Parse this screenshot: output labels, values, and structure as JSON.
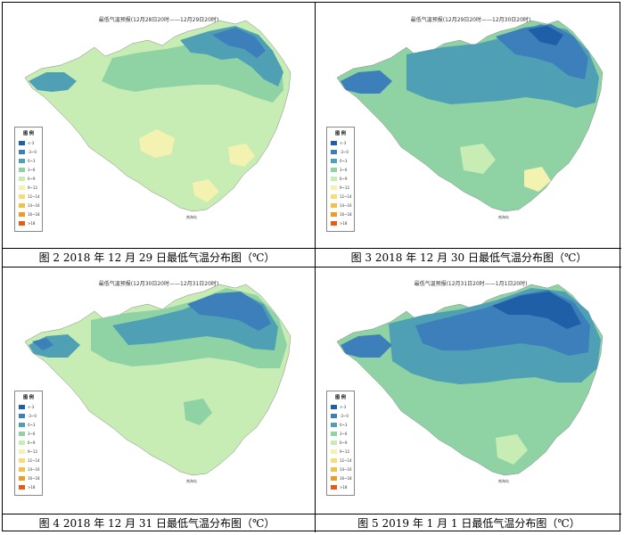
{
  "panels": [
    {
      "title": "最低气温预报(12月28日20时——12月29日20时)",
      "caption": "图 2   2018 年 12 月 29 日最低气温分布图（℃）"
    },
    {
      "title": "最低气温预报(12月29日20时——12月30日20时)",
      "caption": "图 3   2018 年 12 月 30 日最低气温分布图（℃）"
    },
    {
      "title": "最低气温预报(12月30日20时——12月31日20时)",
      "caption": "图 4   2018 年 12 月 31 日最低气温分布图（℃）"
    },
    {
      "title": "最低气温预报(12月31日20时——1月1日20时)",
      "caption": "图 5   2019 年 1 月 1 日最低气温分布图（℃）"
    }
  ],
  "legend": {
    "title": "图 例",
    "items": [
      {
        "label": "<-3",
        "color": "#1f5fa8"
      },
      {
        "label": "-3~0",
        "color": "#3c7fba"
      },
      {
        "label": "0~3",
        "color": "#4f9fb5"
      },
      {
        "label": "3~6",
        "color": "#8fd3a5"
      },
      {
        "label": "6~9",
        "color": "#c7ecb4"
      },
      {
        "label": "9~12",
        "color": "#f4f2b0"
      },
      {
        "label": "12~14",
        "color": "#f7dd7a"
      },
      {
        "label": "14~16",
        "color": "#f2c14a"
      },
      {
        "label": "16~18",
        "color": "#ec9a2a"
      },
      {
        "label": ">18",
        "color": "#e85a16"
      }
    ]
  },
  "sea_label": "南海岛"
}
